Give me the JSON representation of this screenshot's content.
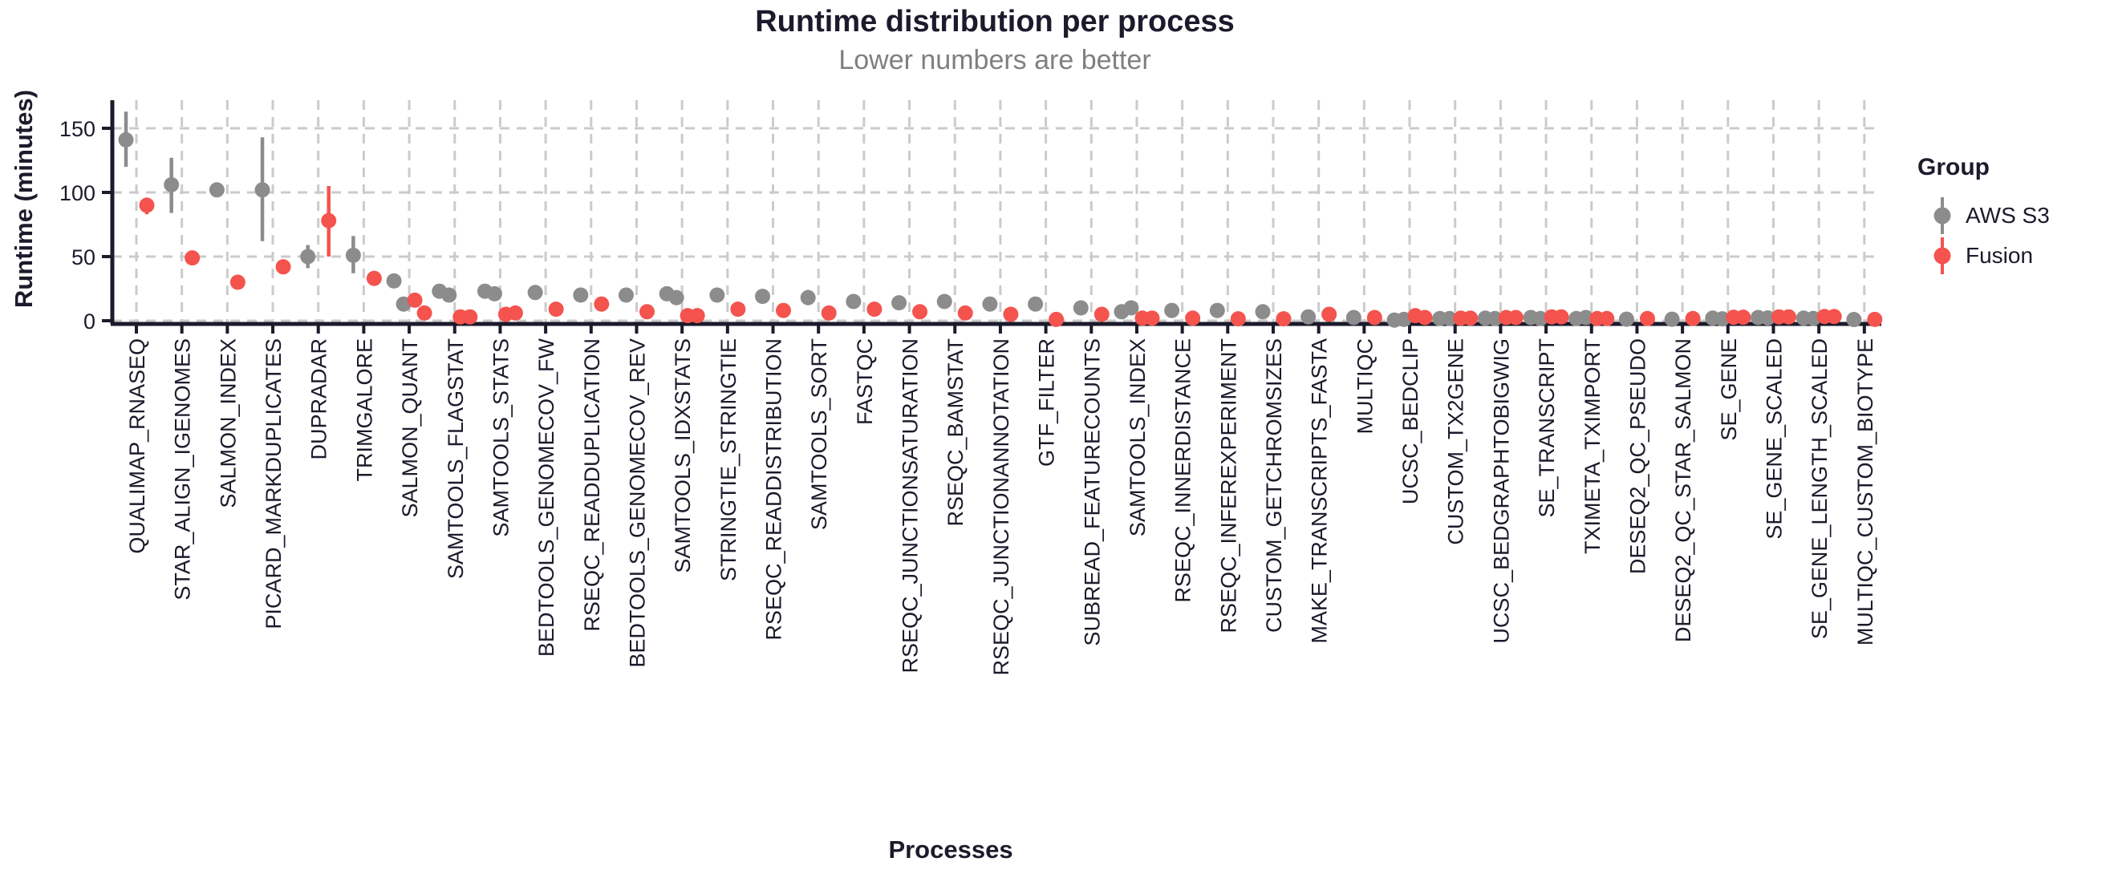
{
  "title": "Runtime distribution per process",
  "subtitle": "Lower numbers are better",
  "legend": {
    "title": "Group",
    "items": [
      {
        "label": "AWS S3",
        "color": "#8c8c8c"
      },
      {
        "label": "Fusion",
        "color": "#f4534e"
      }
    ]
  },
  "chart_data": {
    "type": "scatter",
    "title": "Runtime distribution per process",
    "subtitle": "Lower numbers are better",
    "xlabel": "Processes",
    "ylabel": "Runtime (minutes)",
    "ylim": [
      0,
      170
    ],
    "yticks": [
      0,
      50,
      100,
      150
    ],
    "grid": "dashed",
    "legend_position": "right",
    "series": [
      {
        "name": "AWS S3",
        "color": "#8c8c8c"
      },
      {
        "name": "Fusion",
        "color": "#f4534e"
      }
    ],
    "processes": [
      {
        "name": "QUALIMAP_RNASEQ",
        "aws": {
          "values": [
            141
          ],
          "range": [
            120,
            163
          ]
        },
        "fusion": {
          "values": [
            90
          ],
          "range": [
            83,
            96
          ]
        }
      },
      {
        "name": "STAR_ALIGN_IGENOMES",
        "aws": {
          "values": [
            106
          ],
          "range": [
            84,
            127
          ]
        },
        "fusion": {
          "values": [
            49
          ]
        }
      },
      {
        "name": "SALMON_INDEX",
        "aws": {
          "values": [
            102
          ]
        },
        "fusion": {
          "values": [
            30
          ]
        }
      },
      {
        "name": "PICARD_MARKDUPLICATES",
        "aws": {
          "values": [
            102
          ],
          "range": [
            62,
            143
          ]
        },
        "fusion": {
          "values": [
            42
          ]
        }
      },
      {
        "name": "DUPRADAR",
        "aws": {
          "values": [
            50
          ],
          "range": [
            41,
            59
          ]
        },
        "fusion": {
          "values": [
            78
          ],
          "range": [
            50,
            105
          ]
        }
      },
      {
        "name": "TRIMGALORE",
        "aws": {
          "values": [
            51
          ],
          "range": [
            37,
            66
          ]
        },
        "fusion": {
          "values": [
            33
          ]
        }
      },
      {
        "name": "SALMON_QUANT",
        "aws": {
          "values": [
            31,
            13
          ]
        },
        "fusion": {
          "values": [
            16,
            6
          ]
        }
      },
      {
        "name": "SAMTOOLS_FLAGSTAT",
        "aws": {
          "values": [
            23,
            20
          ]
        },
        "fusion": {
          "values": [
            3,
            3
          ]
        }
      },
      {
        "name": "SAMTOOLS_STATS",
        "aws": {
          "values": [
            23,
            21
          ]
        },
        "fusion": {
          "values": [
            5,
            6
          ]
        }
      },
      {
        "name": "BEDTOOLS_GENOMECOV_FW",
        "aws": {
          "values": [
            22
          ]
        },
        "fusion": {
          "values": [
            9
          ]
        }
      },
      {
        "name": "RSEQC_READDUPLICATION",
        "aws": {
          "values": [
            20
          ]
        },
        "fusion": {
          "values": [
            13
          ]
        }
      },
      {
        "name": "BEDTOOLS_GENOMECOV_REV",
        "aws": {
          "values": [
            20
          ]
        },
        "fusion": {
          "values": [
            7
          ]
        }
      },
      {
        "name": "SAMTOOLS_IDXSTATS",
        "aws": {
          "values": [
            21,
            18
          ]
        },
        "fusion": {
          "values": [
            4,
            4
          ]
        }
      },
      {
        "name": "STRINGTIE_STRINGTIE",
        "aws": {
          "values": [
            20
          ]
        },
        "fusion": {
          "values": [
            9
          ]
        }
      },
      {
        "name": "RSEQC_READDISTRIBUTION",
        "aws": {
          "values": [
            19
          ]
        },
        "fusion": {
          "values": [
            8
          ]
        }
      },
      {
        "name": "SAMTOOLS_SORT",
        "aws": {
          "values": [
            18
          ],
          "range": [
            13,
            24
          ]
        },
        "fusion": {
          "values": [
            6
          ]
        }
      },
      {
        "name": "FASTQC",
        "aws": {
          "values": [
            15
          ]
        },
        "fusion": {
          "values": [
            9
          ]
        }
      },
      {
        "name": "RSEQC_JUNCTIONSATURATION",
        "aws": {
          "values": [
            14
          ]
        },
        "fusion": {
          "values": [
            7
          ]
        }
      },
      {
        "name": "RSEQC_BAMSTAT",
        "aws": {
          "values": [
            15
          ]
        },
        "fusion": {
          "values": [
            6
          ]
        }
      },
      {
        "name": "RSEQC_JUNCTIONANNOTATION",
        "aws": {
          "values": [
            13
          ]
        },
        "fusion": {
          "values": [
            5
          ]
        }
      },
      {
        "name": "GTF_FILTER",
        "aws": {
          "values": [
            13
          ]
        },
        "fusion": {
          "values": [
            1
          ]
        }
      },
      {
        "name": "SUBREAD_FEATURECOUNTS",
        "aws": {
          "values": [
            10
          ]
        },
        "fusion": {
          "values": [
            5
          ]
        }
      },
      {
        "name": "SAMTOOLS_INDEX",
        "aws": {
          "values": [
            7,
            10
          ]
        },
        "fusion": {
          "values": [
            2,
            2
          ]
        }
      },
      {
        "name": "RSEQC_INNERDISTANCE",
        "aws": {
          "values": [
            8
          ]
        },
        "fusion": {
          "values": [
            2
          ]
        }
      },
      {
        "name": "RSEQC_INFEREXPERIMENT",
        "aws": {
          "values": [
            8
          ]
        },
        "fusion": {
          "values": [
            1.5
          ]
        }
      },
      {
        "name": "CUSTOM_GETCHROMSIZES",
        "aws": {
          "values": [
            7
          ]
        },
        "fusion": {
          "values": [
            1.5
          ]
        }
      },
      {
        "name": "MAKE_TRANSCRIPTS_FASTA",
        "aws": {
          "values": [
            3
          ]
        },
        "fusion": {
          "values": [
            5
          ]
        }
      },
      {
        "name": "MULTIQC",
        "aws": {
          "values": [
            2.5
          ]
        },
        "fusion": {
          "values": [
            2.5
          ]
        }
      },
      {
        "name": "UCSC_BEDCLIP",
        "aws": {
          "values": [
            0.5,
            1
          ]
        },
        "fusion": {
          "values": [
            4,
            2.5
          ]
        }
      },
      {
        "name": "CUSTOM_TX2GENE",
        "aws": {
          "values": [
            1.7,
            1.7
          ]
        },
        "fusion": {
          "values": [
            2,
            2
          ]
        }
      },
      {
        "name": "UCSC_BEDGRAPHTOBIGWIG",
        "aws": {
          "values": [
            2,
            1.7
          ]
        },
        "fusion": {
          "values": [
            2.5,
            2.5
          ]
        }
      },
      {
        "name": "SE_TRANSCRIPT",
        "aws": {
          "values": [
            2.5,
            1.7
          ]
        },
        "fusion": {
          "values": [
            3,
            3
          ]
        }
      },
      {
        "name": "TXIMETA_TXIMPORT",
        "aws": {
          "values": [
            1.7,
            2.5
          ]
        },
        "fusion": {
          "values": [
            1.7,
            1.7
          ]
        }
      },
      {
        "name": "DESEQ2_QC_PSEUDO",
        "aws": {
          "values": [
            1.2
          ]
        },
        "fusion": {
          "values": [
            1.7
          ]
        }
      },
      {
        "name": "DESEQ2_QC_STAR_SALMON",
        "aws": {
          "values": [
            1.2
          ]
        },
        "fusion": {
          "values": [
            1.7
          ]
        }
      },
      {
        "name": "SE_GENE",
        "aws": {
          "values": [
            2,
            1.5
          ]
        },
        "fusion": {
          "values": [
            2.7,
            2.7
          ]
        }
      },
      {
        "name": "SE_GENE_SCALED",
        "aws": {
          "values": [
            2.5,
            2.2
          ]
        },
        "fusion": {
          "values": [
            3,
            3
          ]
        }
      },
      {
        "name": "SE_GENE_LENGTH_SCALED",
        "aws": {
          "values": [
            2,
            1.8
          ]
        },
        "fusion": {
          "values": [
            3.3,
            3.3
          ]
        }
      },
      {
        "name": "MULTIQC_CUSTOM_BIOTYPE",
        "aws": {
          "values": [
            0.9
          ]
        },
        "fusion": {
          "values": [
            1
          ]
        }
      }
    ]
  }
}
